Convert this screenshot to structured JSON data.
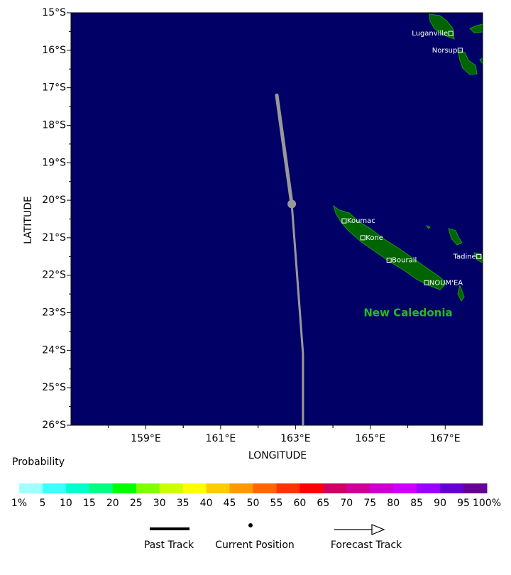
{
  "map": {
    "xlim": [
      157,
      168
    ],
    "ylim": [
      15,
      26
    ],
    "xticks": [
      {
        "value": 159,
        "label": "159°E"
      },
      {
        "value": 161,
        "label": "161°E"
      },
      {
        "value": 163,
        "label": "163°E"
      },
      {
        "value": 165,
        "label": "165°E"
      },
      {
        "value": 167,
        "label": "167°E"
      }
    ],
    "yticks": [
      {
        "value": 15,
        "label": "15°S"
      },
      {
        "value": 16,
        "label": "16°S"
      },
      {
        "value": 17,
        "label": "17°S"
      },
      {
        "value": 18,
        "label": "18°S"
      },
      {
        "value": 19,
        "label": "19°S"
      },
      {
        "value": 20,
        "label": "20°S"
      },
      {
        "value": 21,
        "label": "21°S"
      },
      {
        "value": 22,
        "label": "22°S"
      },
      {
        "value": 23,
        "label": "23°S"
      },
      {
        "value": 24,
        "label": "24°S"
      },
      {
        "value": 25,
        "label": "25°S"
      },
      {
        "value": 26,
        "label": "26°S"
      }
    ],
    "xlabel": "LONGITUDE",
    "ylabel": "LATITUDE",
    "region_label": "New Caledonia",
    "cities": [
      {
        "name": "Luganville",
        "lon": 167.15,
        "lat": 15.55
      },
      {
        "name": "Norsup",
        "lon": 167.4,
        "lat": 16.0
      },
      {
        "name": "Koumac",
        "lon": 164.3,
        "lat": 20.55
      },
      {
        "name": "Kone",
        "lon": 164.8,
        "lat": 21.0
      },
      {
        "name": "Bourail",
        "lon": 165.5,
        "lat": 21.6
      },
      {
        "name": "NOUM'EA",
        "lon": 166.5,
        "lat": 22.2
      },
      {
        "name": "Tadine",
        "lon": 167.9,
        "lat": 21.5
      }
    ],
    "past_track": {
      "lon": [
        162.5,
        162.9
      ],
      "lat": [
        17.2,
        20.1
      ]
    },
    "current_position": {
      "lon": 162.9,
      "lat": 20.1
    },
    "forecast_track": {
      "lon": [
        162.9,
        163.2,
        163.2
      ],
      "lat": [
        20.1,
        24.1,
        26.0
      ]
    }
  },
  "colorbar": {
    "label": "Probability",
    "ticks": [
      {
        "value": 1,
        "label": "1%"
      },
      5,
      10,
      15,
      20,
      25,
      30,
      35,
      40,
      45,
      50,
      55,
      60,
      65,
      70,
      75,
      80,
      85,
      90,
      95,
      {
        "value": 100,
        "label": "100%"
      }
    ],
    "colors": [
      "#a0ffff",
      "#3cffff",
      "#00ffcc",
      "#00ff80",
      "#00ff00",
      "#80ff00",
      "#ccff00",
      "#ffff00",
      "#ffcc00",
      "#ff9900",
      "#ff6600",
      "#ff3300",
      "#ff0000",
      "#cc0066",
      "#cc0099",
      "#cc00cc",
      "#cc00ff",
      "#9900ff",
      "#6600cc",
      "#660099"
    ]
  },
  "legend": {
    "past_track": "Past Track",
    "current_position": "Current Position",
    "forecast_track": "Forecast Track"
  }
}
